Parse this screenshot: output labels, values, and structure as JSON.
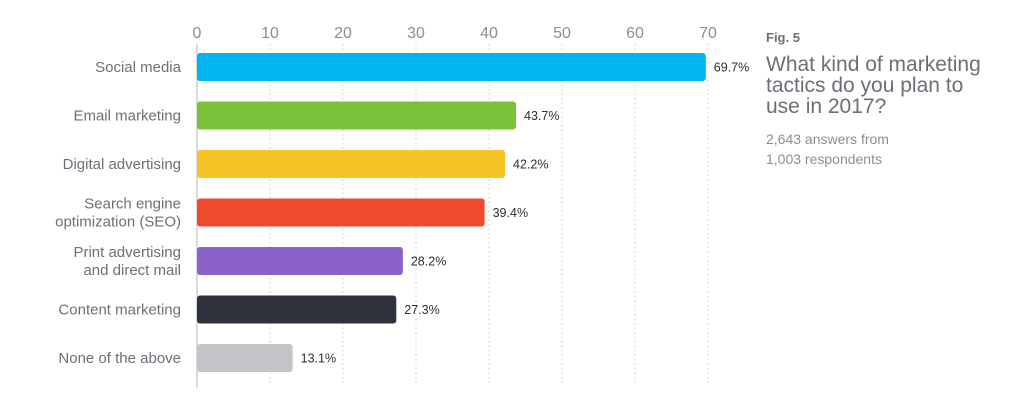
{
  "figure": {
    "label": "Fig. 5",
    "title_lines": [
      "What kind of marketing",
      "tactics do you plan to",
      "use in 2017?"
    ],
    "subtitle_lines": [
      "2,643 answers from",
      "1,003 respondents"
    ]
  },
  "chart_data": {
    "type": "bar",
    "orientation": "horizontal",
    "title": "What kind of marketing tactics do you plan to use in 2017?",
    "xlim": [
      0,
      70
    ],
    "xticks": [
      0,
      10,
      20,
      30,
      40,
      50,
      60,
      70
    ],
    "xaxis_position": "top",
    "grid": "dotted vertical",
    "categories": [
      [
        "Social media"
      ],
      [
        "Email marketing"
      ],
      [
        "Digital advertising"
      ],
      [
        "Search engine",
        "optimization (SEO)"
      ],
      [
        "Print advertising",
        "and direct mail"
      ],
      [
        "Content marketing"
      ],
      [
        "None of the above"
      ]
    ],
    "values": [
      69.7,
      43.7,
      42.2,
      39.4,
      28.2,
      27.3,
      13.1
    ],
    "value_labels": [
      "69.7%",
      "43.7%",
      "42.2%",
      "39.4%",
      "28.2%",
      "27.3%",
      "13.1%"
    ],
    "colors": [
      "#00b5f2",
      "#7cc13a",
      "#f5c425",
      "#ee4b2c",
      "#8a62c8",
      "#2e313c",
      "#c3c4c7"
    ]
  }
}
